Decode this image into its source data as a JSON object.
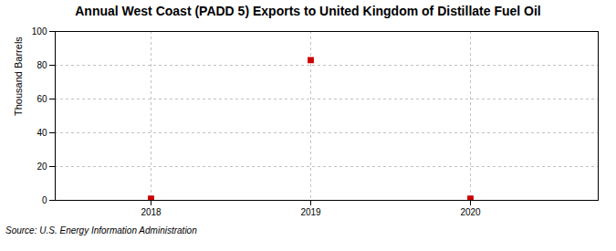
{
  "chart_data": {
    "type": "scatter",
    "title": "Annual West Coast (PADD 5) Exports to United Kingdom of Distillate Fuel Oil",
    "ylabel": "Thousand Barrels",
    "source": "Source: U.S. Energy Information Administration",
    "x": [
      2018,
      2019,
      2020
    ],
    "values": [
      1,
      83,
      1
    ],
    "color": "#cc0000",
    "marker": "square",
    "xlim": [
      2017.4,
      2020.8
    ],
    "xticks": [
      2018,
      2019,
      2020
    ],
    "ylim": [
      0,
      100
    ],
    "yticks": [
      0,
      20,
      40,
      60,
      80,
      100
    ],
    "grid": true
  }
}
